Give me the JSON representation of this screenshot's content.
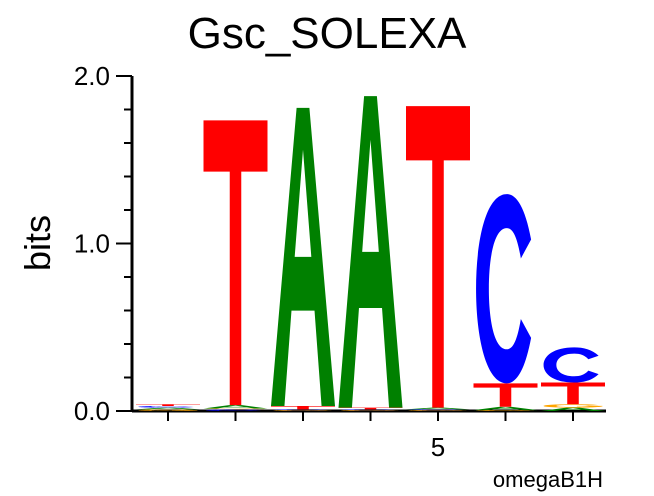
{
  "chart_data": {
    "type": "sequence-logo",
    "title": "Gsc_SOLEXA",
    "ylabel": "bits",
    "xlabel": "",
    "ylim": [
      0,
      2
    ],
    "y_ticks": [
      "0.0",
      "1.0",
      "2.0"
    ],
    "x_tick_labels": [
      {
        "position": 5,
        "label": "5"
      }
    ],
    "footer": "omegaB1H",
    "colors": {
      "A": "#008000",
      "C": "#0000ff",
      "G": "#ffa500",
      "T": "#ff0000"
    },
    "positions": [
      {
        "position": 1,
        "letters": [
          {
            "base": "G",
            "bits": 0.01
          },
          {
            "base": "A",
            "bits": 0.01
          },
          {
            "base": "C",
            "bits": 0.01
          },
          {
            "base": "T",
            "bits": 0.01
          }
        ]
      },
      {
        "position": 2,
        "letters": [
          {
            "base": "C",
            "bits": 0.01
          },
          {
            "base": "G",
            "bits": 0.005
          },
          {
            "base": "A",
            "bits": 0.02
          },
          {
            "base": "T",
            "bits": 1.7
          }
        ]
      },
      {
        "position": 3,
        "letters": [
          {
            "base": "G",
            "bits": 0.005
          },
          {
            "base": "C",
            "bits": 0.005
          },
          {
            "base": "T",
            "bits": 0.02
          },
          {
            "base": "A",
            "bits": 1.78
          }
        ]
      },
      {
        "position": 4,
        "letters": [
          {
            "base": "G",
            "bits": 0.005
          },
          {
            "base": "C",
            "bits": 0.005
          },
          {
            "base": "T",
            "bits": 0.01
          },
          {
            "base": "A",
            "bits": 1.86
          }
        ]
      },
      {
        "position": 5,
        "letters": [
          {
            "base": "G",
            "bits": 0.005
          },
          {
            "base": "C",
            "bits": 0.005
          },
          {
            "base": "A",
            "bits": 0.01
          },
          {
            "base": "T",
            "bits": 1.8
          }
        ]
      },
      {
        "position": 6,
        "letters": [
          {
            "base": "G",
            "bits": 0.005
          },
          {
            "base": "A",
            "bits": 0.02
          },
          {
            "base": "T",
            "bits": 0.14
          },
          {
            "base": "C",
            "bits": 1.13
          }
        ]
      },
      {
        "position": 7,
        "letters": [
          {
            "base": "A",
            "bits": 0.02
          },
          {
            "base": "G",
            "bits": 0.02
          },
          {
            "base": "T",
            "bits": 0.13
          },
          {
            "base": "C",
            "bits": 0.21
          }
        ]
      }
    ]
  }
}
